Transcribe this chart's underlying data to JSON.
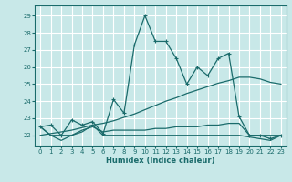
{
  "xlabel": "Humidex (Indice chaleur)",
  "xlim": [
    -0.5,
    23.5
  ],
  "ylim": [
    21.4,
    29.6
  ],
  "yticks": [
    22,
    23,
    24,
    25,
    26,
    27,
    28,
    29
  ],
  "xticks": [
    0,
    1,
    2,
    3,
    4,
    5,
    6,
    7,
    8,
    9,
    10,
    11,
    12,
    13,
    14,
    15,
    16,
    17,
    18,
    19,
    20,
    21,
    22,
    23
  ],
  "bg_color": "#c8e8e8",
  "grid_color": "#ffffff",
  "line_color": "#1a6b6b",
  "spike_x": [
    0,
    1,
    2,
    3,
    4,
    5,
    6,
    7,
    8,
    9,
    10,
    11,
    12,
    13,
    14,
    15,
    16,
    17,
    18,
    19,
    20,
    21,
    22,
    23
  ],
  "spike_y": [
    22.5,
    22.6,
    22.0,
    22.9,
    22.6,
    22.8,
    22.1,
    24.1,
    23.3,
    27.3,
    29.0,
    27.5,
    27.5,
    26.5,
    25.0,
    26.0,
    25.5,
    26.5,
    26.8,
    23.1,
    22.0,
    22.0,
    21.8,
    22.0
  ],
  "diag_x": [
    0,
    1,
    2,
    3,
    4,
    5,
    6,
    7,
    8,
    9,
    10,
    11,
    12,
    13,
    14,
    15,
    16,
    17,
    18,
    19,
    20,
    21,
    22,
    23
  ],
  "diag_y": [
    22.0,
    22.1,
    22.2,
    22.3,
    22.45,
    22.6,
    22.7,
    22.85,
    23.05,
    23.25,
    23.5,
    23.75,
    24.0,
    24.2,
    24.45,
    24.65,
    24.85,
    25.05,
    25.2,
    25.4,
    25.4,
    25.3,
    25.1,
    25.0
  ],
  "flat1_x": [
    0,
    1,
    2,
    3,
    4,
    5,
    6,
    7,
    8,
    9,
    10,
    11,
    12,
    13,
    14,
    15,
    16,
    17,
    18,
    19,
    20,
    21,
    22,
    23
  ],
  "flat1_y": [
    22.5,
    22.0,
    22.0,
    22.0,
    22.3,
    22.5,
    22.2,
    22.3,
    22.3,
    22.3,
    22.3,
    22.4,
    22.4,
    22.5,
    22.5,
    22.5,
    22.6,
    22.6,
    22.7,
    22.7,
    22.0,
    22.0,
    22.0,
    22.0
  ],
  "flat2_x": [
    0,
    1,
    2,
    3,
    4,
    5,
    6,
    7,
    8,
    9,
    10,
    11,
    12,
    13,
    14,
    15,
    16,
    17,
    18,
    19,
    20,
    21,
    22,
    23
  ],
  "flat2_y": [
    22.5,
    22.0,
    21.7,
    22.0,
    22.2,
    22.6,
    22.0,
    22.0,
    22.0,
    22.0,
    22.0,
    22.0,
    22.0,
    22.0,
    22.0,
    22.0,
    22.0,
    22.0,
    22.0,
    22.0,
    21.9,
    21.8,
    21.7,
    22.0
  ]
}
